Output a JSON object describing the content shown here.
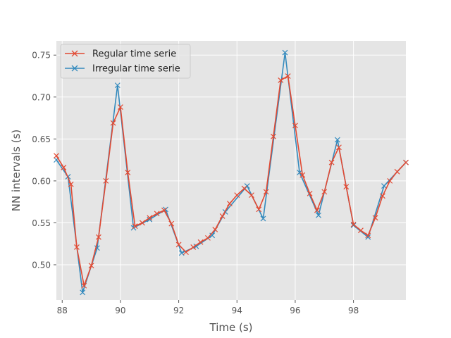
{
  "chart_data": {
    "type": "line",
    "xlabel": "Time (s)",
    "ylabel": "NN intervals (s)",
    "xlim": [
      87.8,
      99.8
    ],
    "ylim": [
      0.458,
      0.767
    ],
    "xticks": [
      88,
      90,
      92,
      94,
      96,
      98
    ],
    "yticks": [
      0.5,
      0.55,
      0.6,
      0.65,
      0.7,
      0.75
    ],
    "xtick_labels": [
      "88",
      "90",
      "92",
      "94",
      "96",
      "98"
    ],
    "ytick_labels": [
      "0.50",
      "0.55",
      "0.60",
      "0.65",
      "0.70",
      "0.75"
    ],
    "grid": true,
    "legend_position": "top-left",
    "series": [
      {
        "name": "Regular time serie",
        "color": "#E24A33",
        "marker": "x",
        "x": [
          87.8,
          88.05,
          88.3,
          88.5,
          88.75,
          89.0,
          89.25,
          89.5,
          89.75,
          90.0,
          90.25,
          90.5,
          90.75,
          91.0,
          91.25,
          91.5,
          91.75,
          92.0,
          92.25,
          92.5,
          92.75,
          93.0,
          93.25,
          93.5,
          93.75,
          94.0,
          94.25,
          94.5,
          94.75,
          95.0,
          95.25,
          95.5,
          95.75,
          96.0,
          96.25,
          96.5,
          96.75,
          97.0,
          97.25,
          97.5,
          97.75,
          98.0,
          98.25,
          98.5,
          98.75,
          99.0,
          99.25,
          99.5,
          99.8
        ],
        "y": [
          0.63,
          0.616,
          0.596,
          0.521,
          0.475,
          0.499,
          0.533,
          0.6,
          0.669,
          0.688,
          0.61,
          0.546,
          0.55,
          0.556,
          0.561,
          0.565,
          0.549,
          0.524,
          0.515,
          0.521,
          0.527,
          0.532,
          0.542,
          0.558,
          0.573,
          0.583,
          0.591,
          0.583,
          0.566,
          0.587,
          0.653,
          0.72,
          0.725,
          0.666,
          0.607,
          0.585,
          0.565,
          0.587,
          0.622,
          0.64,
          0.593,
          0.548,
          0.541,
          0.535,
          0.556,
          0.582,
          0.6,
          0.611,
          0.622
        ]
      },
      {
        "name": "Irregular time serie",
        "color": "#348ABD",
        "marker": "x",
        "x": [
          87.8,
          88.2,
          88.7,
          89.2,
          89.9,
          90.45,
          91.0,
          91.55,
          92.1,
          92.6,
          93.15,
          93.6,
          94.35,
          94.9,
          95.65,
          96.15,
          96.8,
          97.45,
          98.0,
          98.5,
          99.05,
          99.8
        ],
        "y": [
          0.625,
          0.605,
          0.467,
          0.52,
          0.714,
          0.544,
          0.554,
          0.566,
          0.514,
          0.522,
          0.535,
          0.563,
          0.594,
          0.555,
          0.753,
          0.61,
          0.559,
          0.649,
          0.547,
          0.533,
          0.594,
          0.622
        ]
      }
    ]
  }
}
